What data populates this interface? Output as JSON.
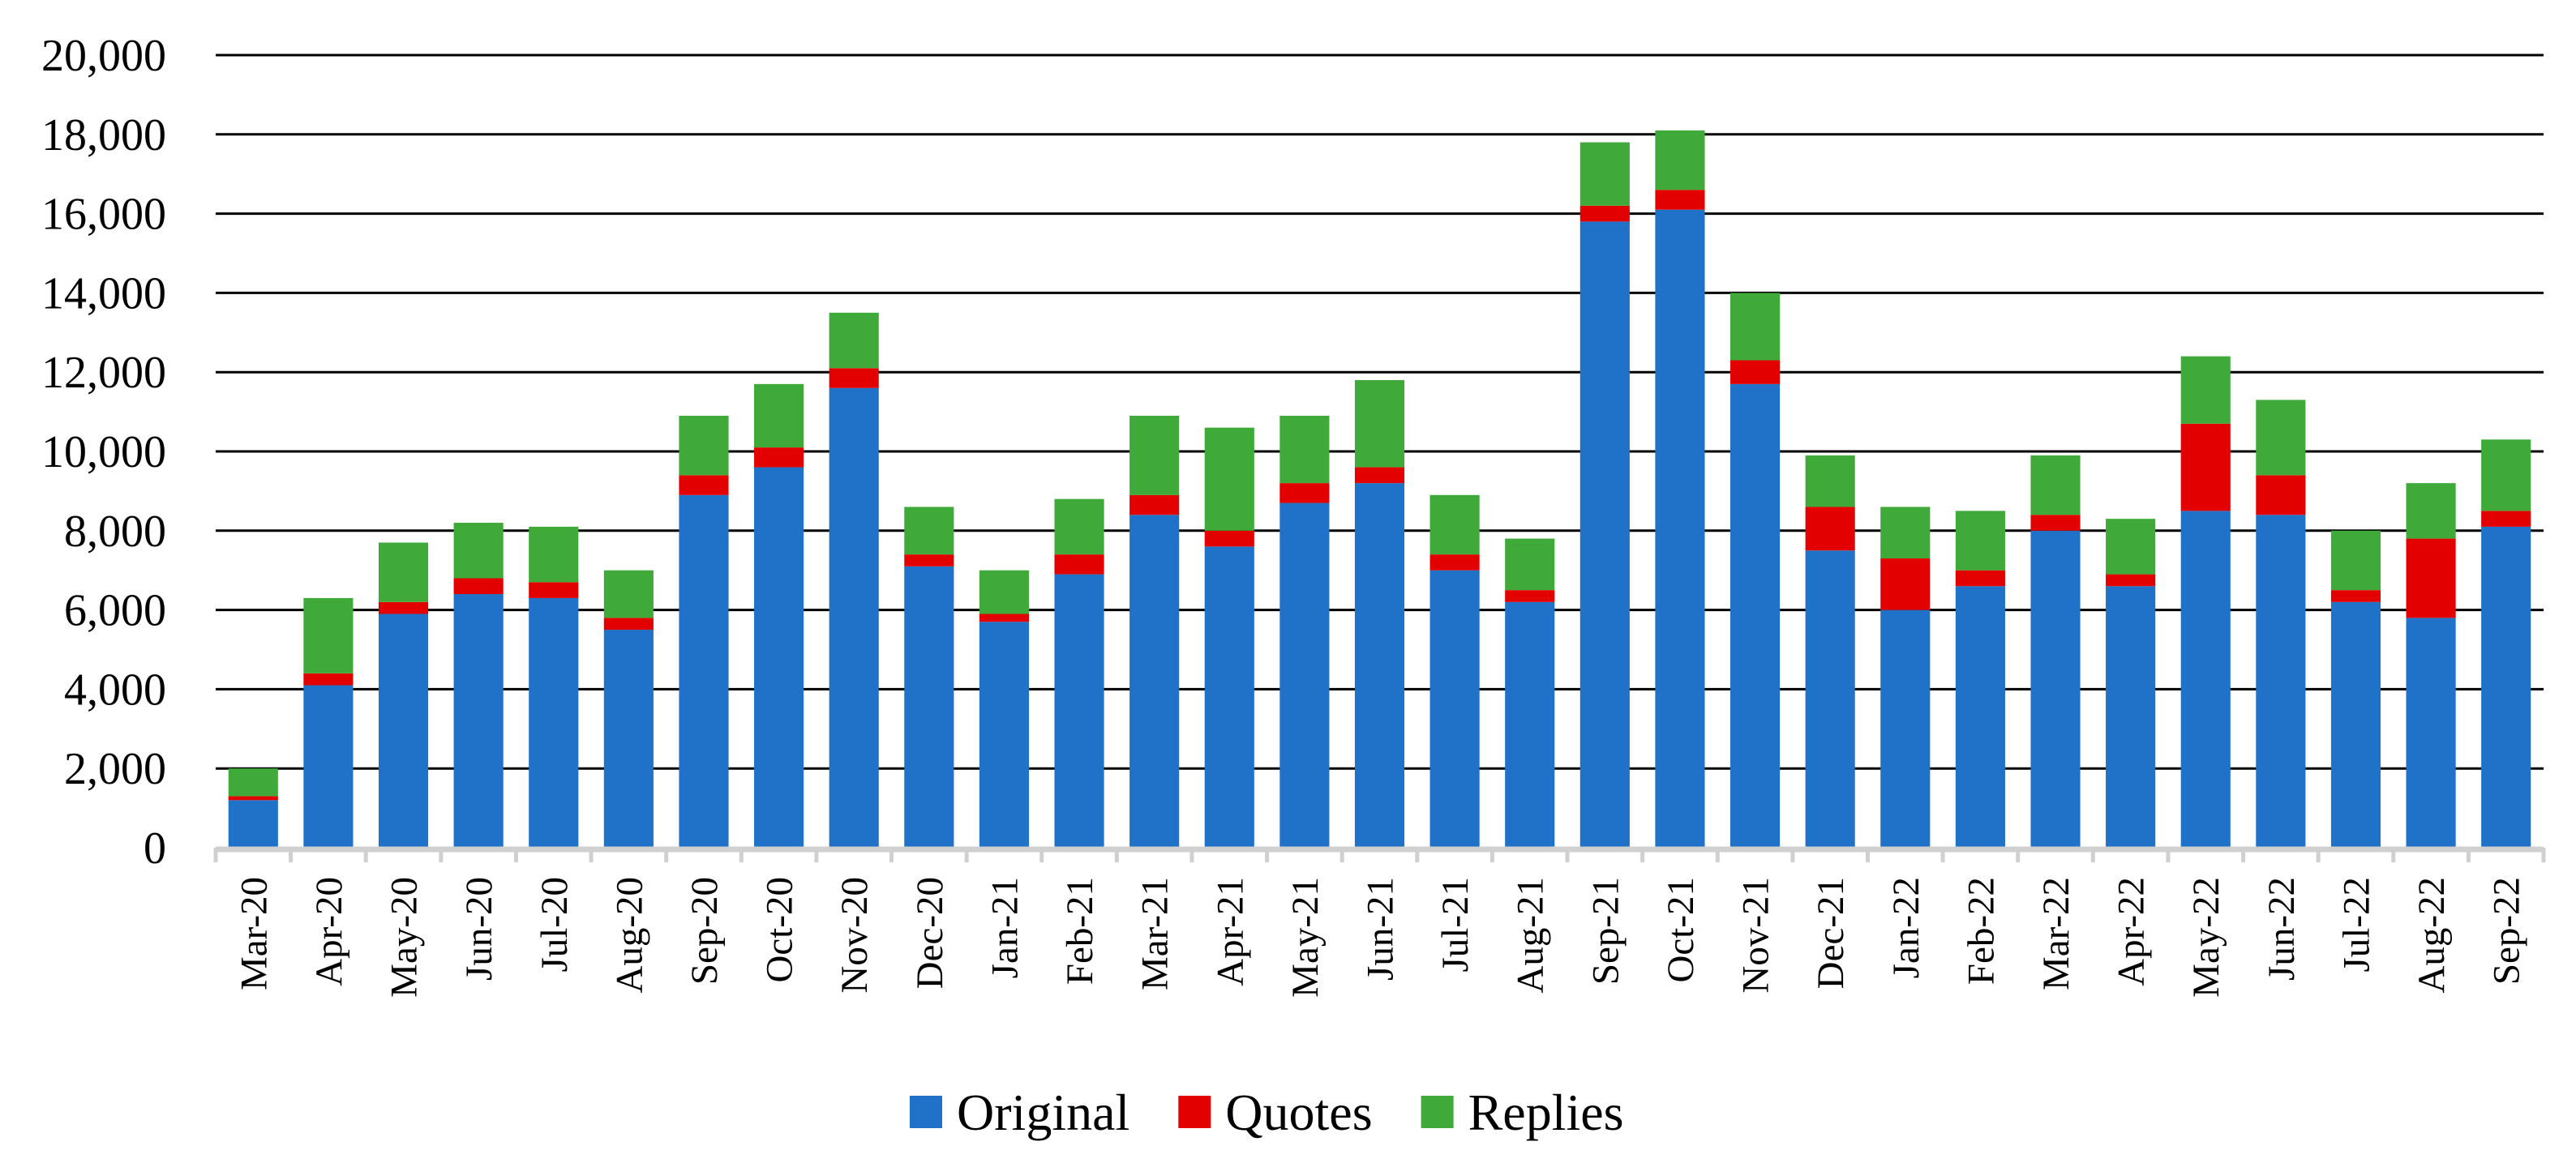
{
  "chart_data": {
    "type": "bar",
    "stacked": true,
    "title": "",
    "xlabel": "",
    "ylabel": "",
    "ylim": [
      0,
      20000
    ],
    "yticks": [
      0,
      2000,
      4000,
      6000,
      8000,
      10000,
      12000,
      14000,
      16000,
      18000,
      20000
    ],
    "ytick_labels": [
      "0",
      "2,000",
      "4,000",
      "6,000",
      "8,000",
      "10,000",
      "12,000",
      "14,000",
      "16,000",
      "18,000",
      "20,000"
    ],
    "grid": true,
    "legend_position": "bottom",
    "categories": [
      "Mar-20",
      "Apr-20",
      "May-20",
      "Jun-20",
      "Jul-20",
      "Aug-20",
      "Sep-20",
      "Oct-20",
      "Nov-20",
      "Dec-20",
      "Jan-21",
      "Feb-21",
      "Mar-21",
      "Apr-21",
      "May-21",
      "Jun-21",
      "Jul-21",
      "Aug-21",
      "Sep-21",
      "Oct-21",
      "Nov-21",
      "Dec-21",
      "Jan-22",
      "Feb-22",
      "Mar-22",
      "Apr-22",
      "May-22",
      "Jun-22",
      "Jul-22",
      "Aug-22",
      "Sep-22"
    ],
    "series": [
      {
        "name": "Original",
        "color": "#1F72C8",
        "values": [
          1200,
          4100,
          5900,
          6400,
          6300,
          5500,
          8900,
          9600,
          11600,
          7100,
          5700,
          6900,
          8400,
          7600,
          8700,
          9200,
          7000,
          6200,
          15800,
          16100,
          11700,
          7500,
          6000,
          6600,
          8000,
          6600,
          8500,
          8400,
          6200,
          5800,
          8100
        ]
      },
      {
        "name": "Quotes",
        "color": "#E30000",
        "values": [
          100,
          300,
          300,
          400,
          400,
          300,
          500,
          500,
          500,
          300,
          200,
          500,
          500,
          400,
          500,
          400,
          400,
          300,
          400,
          500,
          600,
          1100,
          1300,
          400,
          400,
          300,
          2200,
          1000,
          300,
          2000,
          400
        ]
      },
      {
        "name": "Replies",
        "color": "#3FAA3A",
        "values": [
          700,
          1900,
          1500,
          1400,
          1400,
          1200,
          1500,
          1600,
          1400,
          1200,
          1100,
          1400,
          2000,
          2600,
          1700,
          2200,
          1500,
          1300,
          1600,
          1500,
          1700,
          1300,
          1300,
          1500,
          1500,
          1400,
          1700,
          1900,
          1500,
          1400,
          1800
        ]
      }
    ]
  }
}
